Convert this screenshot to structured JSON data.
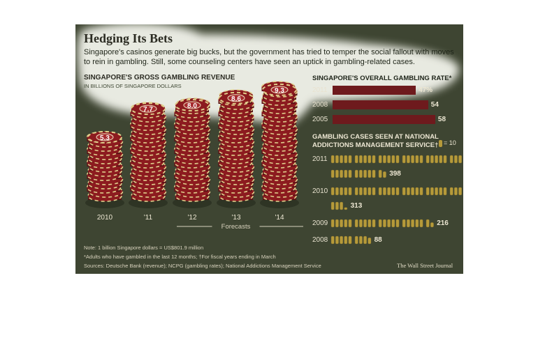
{
  "header": {
    "title": "Hedging Its Bets",
    "subtitle": "Singapore's casinos generate big bucks, but the government has tried to temper the social fallout with moves to rein in gambling. Still, some counseling centers have seen an uptick in gambling-related cases."
  },
  "chart_data": [
    {
      "type": "bar",
      "title": "SINGAPORE'S GROSS GAMBLING REVENUE",
      "subtitle": "IN BILLIONS OF SINGAPORE DOLLARS",
      "categories": [
        "2010",
        "'11",
        "'12",
        "'13",
        "'14"
      ],
      "values": [
        5.3,
        7.7,
        8.0,
        8.6,
        9.3
      ],
      "value_labels": [
        "5.3",
        "7.7",
        "8.0",
        "8.6",
        "9.3"
      ],
      "forecast_categories": [
        "'12",
        "'13",
        "'14"
      ],
      "forecast_label": "Forecasts",
      "ylim": [
        0,
        10
      ],
      "colors": {
        "chip_main": "#8c1b1f",
        "chip_edge": "#e0cf8c",
        "chip_dark": "#5a1115"
      }
    },
    {
      "type": "bar",
      "title": "SINGAPORE'S OVERALL GAMBLING RATE*",
      "orientation": "horizontal",
      "categories": [
        "2011",
        "2008",
        "2005"
      ],
      "values": [
        47,
        54,
        58
      ],
      "value_labels": [
        "47%",
        "54",
        "58"
      ],
      "xlim": [
        0,
        60
      ],
      "color": "#6e1a1d"
    },
    {
      "type": "bar",
      "title": "GAMBLING CASES SEEN AT NATIONAL ADDICTIONS MANAGEMENT SERVICE",
      "title_mark": "†",
      "legend": "= 10",
      "icon": "casino-chip-icon",
      "unit_per_icon": 10,
      "categories": [
        "2011",
        "2010",
        "2009",
        "2008"
      ],
      "values": [
        398,
        313,
        216,
        88
      ],
      "value_labels": [
        "398",
        "313",
        "216",
        "88"
      ],
      "color": "#b69a3a"
    }
  ],
  "footer": {
    "note1": "Note: 1 billion Singapore dollars = US$801.9 million",
    "note2": "*Adults who have gambled in the last 12 months; †For fiscal years ending in March",
    "sources": "Sources: Deutsche Bank (revenue); NCPG (gambling rates); National Addictions Management Service",
    "credit": "The Wall Street Journal"
  }
}
